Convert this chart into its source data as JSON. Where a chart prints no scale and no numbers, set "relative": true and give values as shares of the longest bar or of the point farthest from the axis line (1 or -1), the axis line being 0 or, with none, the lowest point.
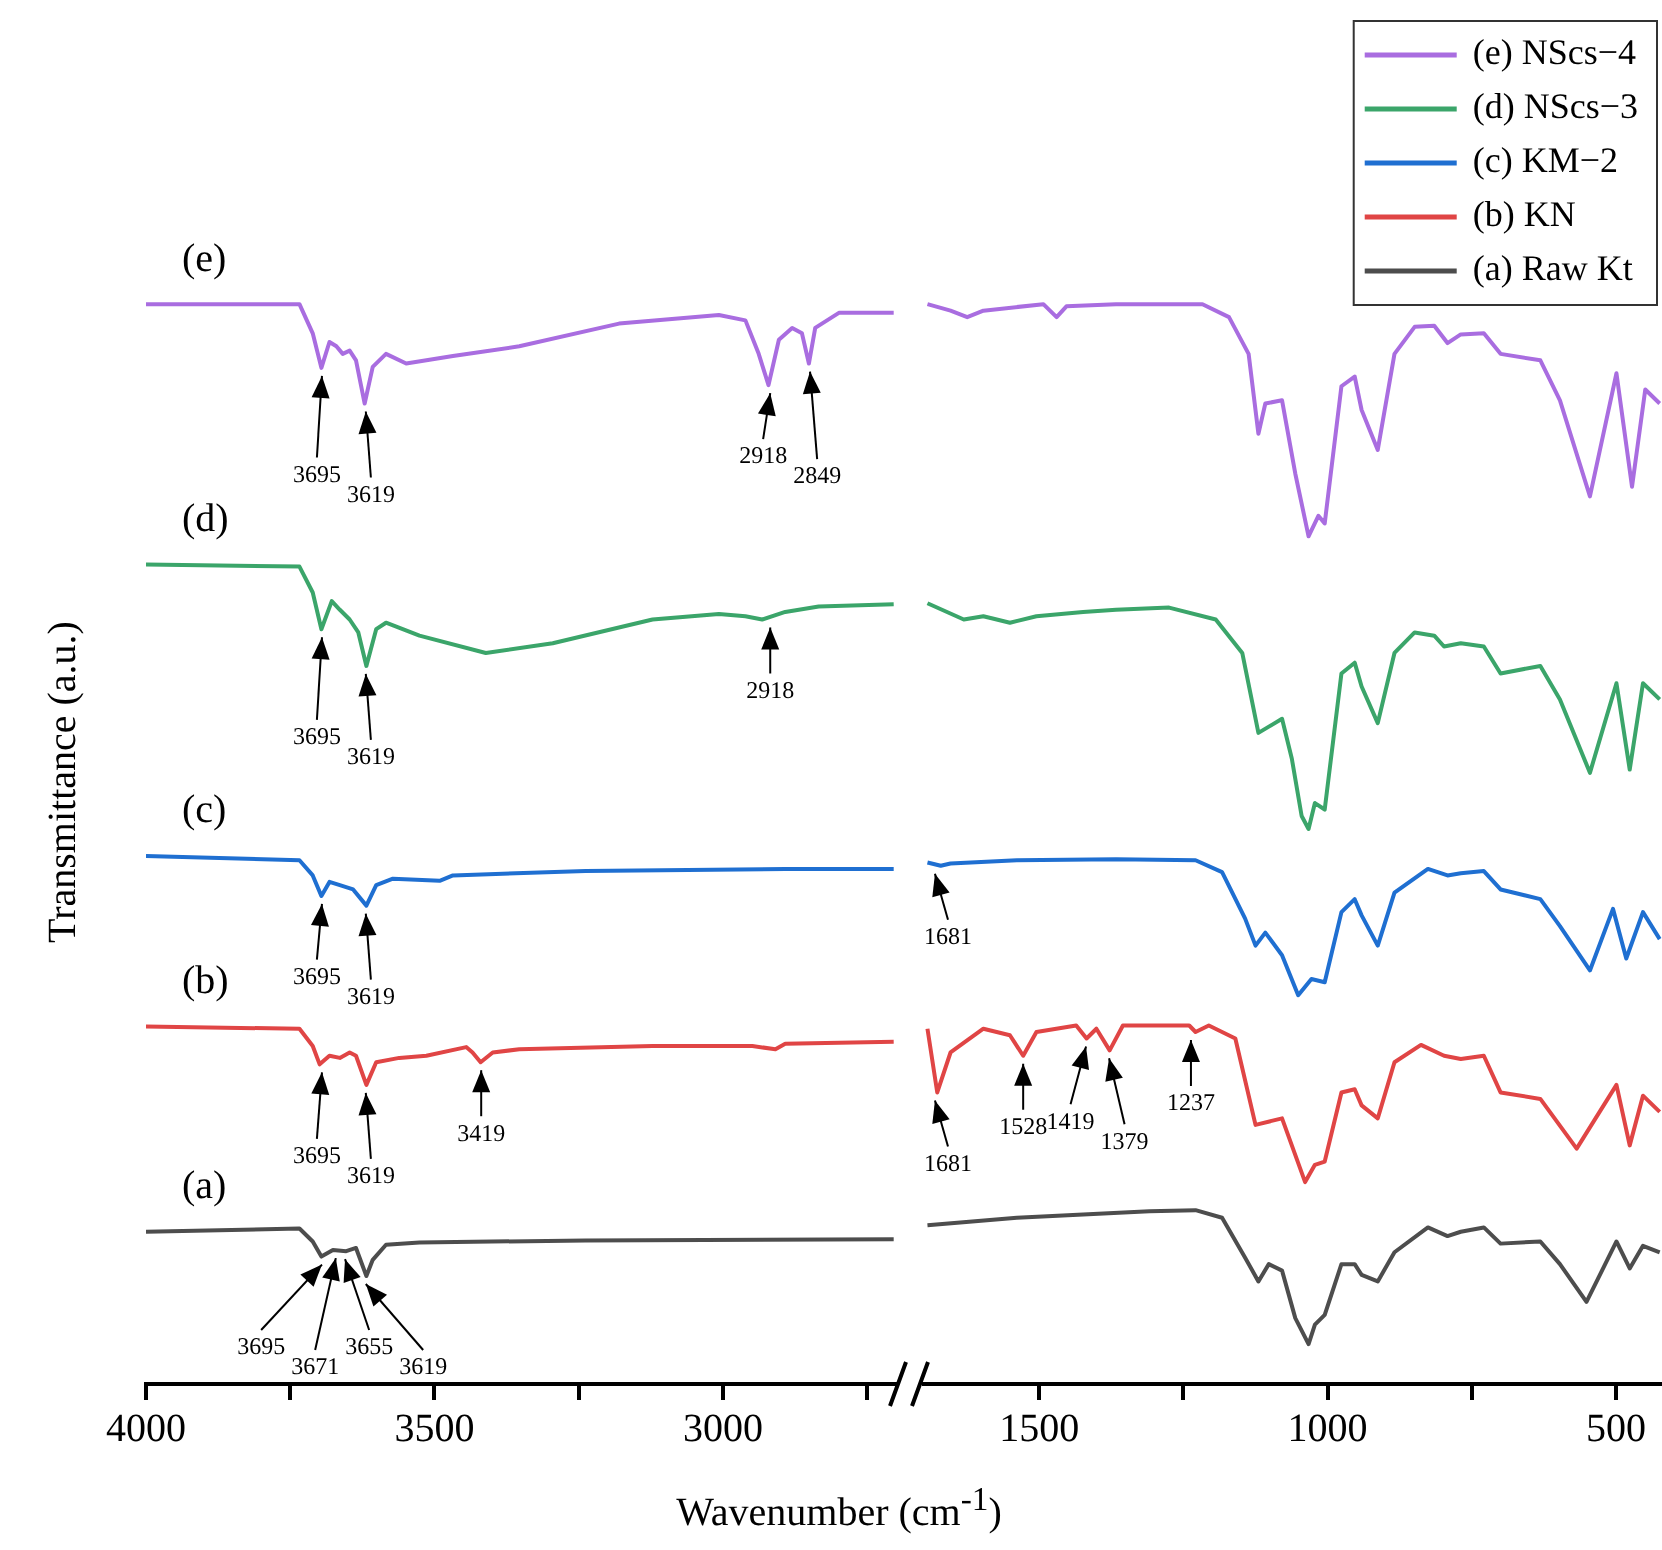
{
  "chart_data": [
    {
      "type": "line",
      "relative": true,
      "xlabel": "Wavenumber (cm$^{-1}$)",
      "ylabel": "Transmittance (a.u.)",
      "xlim": [
        4000,
        2700
      ],
      "xticks": [
        4000,
        {
          "value": 3750,
          "label": null
        },
        3500,
        {
          "value": 3250,
          "label": null
        },
        3000,
        {
          "value": 2750,
          "label": null
        }
      ],
      "series": [
        {
          "color": "#a96de0",
          "x": [
            4000,
            3734,
            3711,
            3696,
            3682,
            3670,
            3659,
            3647,
            3636,
            3621,
            3607,
            3584,
            3549,
            3468,
            3353,
            3180,
            3007,
            2961,
            2938,
            2921,
            2903,
            2880,
            2863,
            2851,
            2840,
            2799,
            2704
          ],
          "values": [
            1.0,
            1.0,
            0.973,
            0.941,
            0.965,
            0.961,
            0.954,
            0.957,
            0.948,
            0.908,
            0.942,
            0.954,
            0.945,
            0.952,
            0.961,
            0.982,
            0.99,
            0.985,
            0.954,
            0.925,
            0.967,
            0.978,
            0.973,
            0.945,
            0.978,
            0.992,
            0.992
          ]
        },
        {
          "color": "#3ba56a",
          "x": [
            4000,
            3734,
            3711,
            3696,
            3678,
            3664,
            3647,
            3632,
            3618,
            3601,
            3584,
            3526,
            3411,
            3295,
            3122,
            3007,
            2961,
            2932,
            2892,
            2834,
            2704
          ],
          "values": [
            0.759,
            0.757,
            0.733,
            0.699,
            0.725,
            0.717,
            0.708,
            0.696,
            0.665,
            0.699,
            0.705,
            0.693,
            0.677,
            0.686,
            0.708,
            0.713,
            0.711,
            0.708,
            0.715,
            0.72,
            0.722
          ]
        },
        {
          "color": "#1f6fd1",
          "x": [
            4000,
            3734,
            3711,
            3696,
            3682,
            3664,
            3641,
            3618,
            3601,
            3572,
            3491,
            3468,
            3238,
            2892,
            2704
          ],
          "values": [
            0.489,
            0.485,
            0.471,
            0.452,
            0.465,
            0.462,
            0.458,
            0.443,
            0.462,
            0.468,
            0.466,
            0.471,
            0.475,
            0.477,
            0.477
          ]
        },
        {
          "color": "#e04545",
          "x": [
            4000,
            3734,
            3711,
            3699,
            3682,
            3664,
            3647,
            3636,
            3618,
            3601,
            3561,
            3514,
            3445,
            3434,
            3420,
            3399,
            3353,
            3122,
            2949,
            2909,
            2892,
            2704
          ],
          "values": [
            0.331,
            0.329,
            0.313,
            0.296,
            0.304,
            0.302,
            0.307,
            0.304,
            0.277,
            0.298,
            0.302,
            0.304,
            0.312,
            0.307,
            0.298,
            0.307,
            0.31,
            0.313,
            0.313,
            0.31,
            0.315,
            0.317
          ]
        },
        {
          "color": "#4d4d4d",
          "x": [
            4000,
            3734,
            3711,
            3696,
            3676,
            3653,
            3636,
            3618,
            3607,
            3584,
            3526,
            3238,
            2704
          ],
          "values": [
            0.141,
            0.144,
            0.132,
            0.118,
            0.124,
            0.123,
            0.126,
            0.1,
            0.115,
            0.129,
            0.131,
            0.133,
            0.134
          ]
        }
      ],
      "annotations": [
        "(e)",
        "(d)",
        "(c)",
        "(b)",
        "(a)",
        {
          "text": "3695",
          "x": 3695,
          "y": 0.941
        },
        {
          "text": "3619",
          "x": 3619,
          "y": 0.908
        },
        {
          "text": "2918",
          "x": 2918,
          "y": 0.925
        },
        {
          "text": "2849",
          "x": 2849,
          "y": 0.945
        },
        {
          "text": "3695",
          "x": 3695,
          "y": 0.699
        },
        {
          "text": "3619",
          "x": 3619,
          "y": 0.665
        },
        {
          "text": "2918",
          "x": 2918,
          "y": 0.708
        },
        {
          "text": "3695",
          "x": 3695,
          "y": 0.452
        },
        {
          "text": "3619",
          "x": 3619,
          "y": 0.443
        },
        {
          "text": "3695",
          "x": 3695,
          "y": 0.296
        },
        {
          "text": "3619",
          "x": 3619,
          "y": 0.277
        },
        {
          "text": "3419",
          "x": 3419,
          "y": 0.298
        },
        {
          "text": "3695",
          "x": 3695,
          "y": 0.118
        },
        {
          "text": "3671",
          "x": 3671,
          "y": 0.124
        },
        {
          "text": "3655",
          "x": 3655,
          "y": 0.123
        },
        {
          "text": "3619",
          "x": 3619,
          "y": 0.1
        }
      ]
    },
    {
      "type": "line",
      "relative": true,
      "legend": "top right",
      "xlim": [
        1700,
        420
      ],
      "xticks": [
        1500,
        {
          "value": 1250,
          "label": null
        },
        1000,
        {
          "value": 750,
          "label": null
        },
        500
      ],
      "series": [
        {
          "name": "(e) NScs−4",
          "color": "#a96de0",
          "x": [
            1694,
            1654,
            1625,
            1597,
            1493,
            1470,
            1453,
            1367,
            1217,
            1171,
            1137,
            1120,
            1108,
            1079,
            1056,
            1033,
            1016,
            1005,
            976,
            953,
            941,
            913,
            884,
            849,
            815,
            792,
            769,
            729,
            700,
            631,
            597,
            545,
            499,
            472,
            449,
            424
          ],
          "values": [
            1.0,
            0.994,
            0.988,
            0.994,
            1.0,
            0.988,
            0.998,
            1.0,
            1.0,
            0.988,
            0.954,
            0.88,
            0.908,
            0.911,
            0.843,
            0.785,
            0.804,
            0.797,
            0.924,
            0.933,
            0.902,
            0.865,
            0.954,
            0.979,
            0.98,
            0.964,
            0.972,
            0.973,
            0.954,
            0.948,
            0.911,
            0.822,
            0.936,
            0.831,
            0.921,
            0.908
          ]
        },
        {
          "name": "(d) NScs−3",
          "color": "#3ba56a",
          "x": [
            1694,
            1631,
            1597,
            1551,
            1505,
            1424,
            1367,
            1275,
            1194,
            1148,
            1120,
            1079,
            1062,
            1045,
            1033,
            1022,
            1005,
            976,
            953,
            941,
            913,
            884,
            849,
            815,
            798,
            769,
            729,
            700,
            631,
            597,
            545,
            499,
            476,
            453,
            424
          ],
          "values": [
            0.723,
            0.708,
            0.711,
            0.705,
            0.711,
            0.715,
            0.717,
            0.719,
            0.708,
            0.677,
            0.603,
            0.616,
            0.579,
            0.526,
            0.514,
            0.538,
            0.532,
            0.658,
            0.668,
            0.646,
            0.612,
            0.677,
            0.696,
            0.693,
            0.683,
            0.686,
            0.683,
            0.658,
            0.665,
            0.634,
            0.566,
            0.649,
            0.569,
            0.649,
            0.634
          ]
        },
        {
          "name": "(c) KM−2",
          "color": "#1f6fd1",
          "x": [
            1694,
            1671,
            1654,
            1539,
            1367,
            1229,
            1183,
            1143,
            1125,
            1108,
            1079,
            1051,
            1028,
            1005,
            976,
            953,
            941,
            913,
            884,
            826,
            792,
            769,
            729,
            700,
            631,
            597,
            545,
            505,
            482,
            453,
            424
          ],
          "values": [
            0.483,
            0.48,
            0.482,
            0.485,
            0.486,
            0.485,
            0.474,
            0.431,
            0.406,
            0.418,
            0.397,
            0.36,
            0.375,
            0.372,
            0.437,
            0.449,
            0.434,
            0.406,
            0.455,
            0.477,
            0.471,
            0.473,
            0.475,
            0.458,
            0.449,
            0.424,
            0.383,
            0.44,
            0.394,
            0.437,
            0.412
          ]
        },
        {
          "name": "(b) KN",
          "color": "#e04545",
          "x": [
            1694,
            1677,
            1654,
            1597,
            1551,
            1528,
            1505,
            1436,
            1418,
            1401,
            1378,
            1355,
            1240,
            1229,
            1206,
            1160,
            1125,
            1079,
            1039,
            1022,
            1005,
            976,
            953,
            941,
            913,
            884,
            838,
            798,
            769,
            729,
            700,
            631,
            568,
            499,
            476,
            453,
            424
          ],
          "values": [
            0.329,
            0.27,
            0.307,
            0.329,
            0.323,
            0.304,
            0.326,
            0.332,
            0.32,
            0.329,
            0.309,
            0.332,
            0.332,
            0.326,
            0.332,
            0.32,
            0.24,
            0.246,
            0.187,
            0.203,
            0.206,
            0.27,
            0.273,
            0.258,
            0.246,
            0.298,
            0.314,
            0.304,
            0.301,
            0.304,
            0.27,
            0.264,
            0.218,
            0.277,
            0.221,
            0.267,
            0.252
          ]
        },
        {
          "name": "(a) Raw Kt",
          "color": "#4d4d4d",
          "x": [
            1694,
            1539,
            1309,
            1229,
            1183,
            1143,
            1120,
            1102,
            1079,
            1056,
            1033,
            1022,
            1005,
            976,
            953,
            941,
            913,
            884,
            826,
            792,
            769,
            729,
            700,
            631,
            597,
            551,
            499,
            476,
            453,
            424
          ],
          "values": [
            0.147,
            0.154,
            0.16,
            0.161,
            0.154,
            0.117,
            0.095,
            0.111,
            0.105,
            0.061,
            0.037,
            0.055,
            0.064,
            0.111,
            0.111,
            0.101,
            0.095,
            0.122,
            0.145,
            0.137,
            0.141,
            0.145,
            0.13,
            0.132,
            0.111,
            0.076,
            0.132,
            0.107,
            0.128,
            0.122
          ]
        }
      ],
      "annotations": [
        {
          "text": "1681",
          "x": 1681,
          "y": 0.48
        },
        {
          "text": "1681",
          "x": 1681,
          "y": 0.27
        },
        {
          "text": "1528",
          "x": 1528,
          "y": 0.304
        },
        {
          "text": "1419",
          "x": 1419,
          "y": 0.32
        },
        {
          "text": "1379",
          "x": 1379,
          "y": 0.309
        },
        {
          "text": "1237",
          "x": 1237,
          "y": 0.326
        }
      ]
    }
  ]
}
